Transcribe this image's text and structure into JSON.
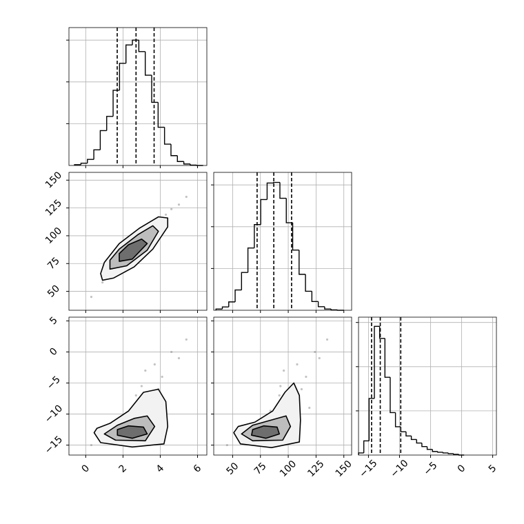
{
  "chart_data": {
    "type": "corner",
    "grid": true,
    "grid_color": "#b0b0b0",
    "line_color": "#000000",
    "point_color": "#888888",
    "level_colors": [
      "#f2f2f2",
      "#bdbdbd",
      "#6e6e6e"
    ],
    "params": [
      {
        "lim": [
          -0.9,
          6.5
        ],
        "ticks": [
          0,
          2,
          4,
          6
        ],
        "bins": [
          -0.6,
          -0.255,
          0.09,
          0.435,
          0.78,
          1.125,
          1.47,
          1.815,
          2.16,
          2.505,
          2.85,
          3.195,
          3.54,
          3.885,
          4.23,
          4.575,
          4.92,
          5.265,
          5.61,
          5.955,
          6.3
        ],
        "counts": [
          4,
          11,
          29,
          75,
          167,
          235,
          360,
          489,
          577,
          600,
          545,
          432,
          302,
          183,
          102,
          47,
          19,
          7,
          2,
          0
        ],
        "hist_ylim": [
          0,
          660
        ],
        "hist_yticks": [
          200,
          400,
          600
        ],
        "quantiles": [
          1.69,
          2.7,
          3.67
        ]
      },
      {
        "lim": [
          33,
          157
        ],
        "ticks": [
          50,
          75,
          100,
          125,
          150
        ],
        "bins": [
          35,
          40.75,
          46.5,
          52.25,
          58,
          63.75,
          69.5,
          75.25,
          81,
          86.75,
          92.5,
          98.25,
          104,
          109.75,
          115.5,
          121.25,
          127,
          132.75,
          138.5,
          144.25,
          150
        ],
        "counts": [
          6,
          16,
          40,
          97,
          181,
          298,
          410,
          530,
          609,
          612,
          536,
          419,
          288,
          172,
          91,
          42,
          17,
          6,
          2,
          0
        ],
        "hist_ylim": [
          0,
          660
        ],
        "hist_yticks": [
          200,
          400,
          600
        ],
        "quantiles": [
          72,
          87,
          103
        ]
      },
      {
        "lim": [
          -16.6,
          5.6
        ],
        "ticks": [
          {
            "value": -15,
            "label": "−15"
          },
          {
            "value": -10,
            "label": "−10"
          },
          {
            "value": -5,
            "label": "−5"
          },
          0,
          5
        ],
        "bins": [
          -16.6,
          -15.75,
          -14.9,
          -14.05,
          -13.2,
          -12.35,
          -11.5,
          -10.65,
          -9.8,
          -8.95,
          -8.1,
          -7.25,
          -6.4,
          -5.55,
          -4.7,
          -3.85,
          -3.0,
          -2.15,
          -1.3,
          -0.45,
          0.4
        ],
        "counts": [
          12,
          80,
          320,
          728,
          660,
          440,
          240,
          160,
          132,
          108,
          88,
          68,
          48,
          32,
          20,
          16,
          12,
          8,
          4,
          0
        ],
        "hist_ylim": [
          0,
          780
        ],
        "hist_yticks": [
          250,
          500,
          750
        ],
        "quantiles": [
          -14.5,
          -13.1,
          -9.8
        ]
      }
    ],
    "samples": {
      "x": [
        0.3,
        0.9,
        1.2,
        1.5,
        1.7,
        1.9,
        2.0,
        2.2,
        2.3,
        2.4,
        2.5,
        2.6,
        2.7,
        2.8,
        2.9,
        3.0,
        3.1,
        3.2,
        3.4,
        3.5,
        3.7,
        3.9,
        4.1,
        4.3,
        4.6,
        5.0,
        5.4,
        1.1,
        2.1,
        3.3
      ],
      "y1": [
        45,
        58,
        66,
        70,
        74,
        79,
        80,
        83,
        88,
        84,
        90,
        86,
        92,
        89,
        95,
        93,
        99,
        96,
        101,
        105,
        108,
        112,
        116,
        119,
        124,
        128,
        135,
        62,
        76,
        104
      ],
      "y2": [
        -15,
        -14.5,
        -13.8,
        -14,
        -12.9,
        -13.4,
        -11,
        -12.8,
        -13.2,
        -9.5,
        -13.5,
        -12.4,
        -7,
        -11.8,
        -13,
        -5.5,
        -10,
        -3,
        -12,
        -8,
        -2,
        -6,
        -4,
        -9,
        0,
        -1,
        2,
        -14,
        -13.6,
        -11.2
      ]
    },
    "contours": [
      {
        "panel": [
          1,
          0
        ],
        "levels": [
          {
            "x": [
              0.9,
              1.5,
              2.6,
              3.6,
              4.4,
              4.4,
              3.9,
              2.9,
              1.8,
              1.0,
              0.8
            ],
            "y": [
              60,
              62,
              72,
              88,
              108,
              116,
              117,
              107,
              93,
              76,
              66
            ]
          },
          {
            "x": [
              1.3,
              2.2,
              3.3,
              3.9,
              3.6,
              2.8,
              1.8,
              1.3
            ],
            "y": [
              70,
              73,
              87,
              104,
              109,
              101,
              88,
              78
            ]
          },
          {
            "x": [
              1.8,
              2.5,
              3.3,
              3.0,
              2.3,
              1.8
            ],
            "y": [
              77,
              79,
              93,
              97,
              92,
              84
            ]
          }
        ]
      },
      {
        "panel": [
          2,
          0
        ],
        "levels": [
          {
            "x": [
              0.45,
              0.8,
              2.5,
              4.2,
              4.4,
              4.3,
              3.9,
              3.1,
              2.3,
              1.3,
              0.6
            ],
            "y": [
              -13,
              -14.6,
              -15.3,
              -14.8,
              -12,
              -8,
              -6,
              -6.5,
              -9.5,
              -11.5,
              -12.3
            ]
          },
          {
            "x": [
              1.0,
              1.6,
              3.2,
              3.7,
              3.3,
              2.6,
              1.7
            ],
            "y": [
              -13.2,
              -14.2,
              -14.3,
              -12,
              -10.3,
              -10.7,
              -11.8
            ]
          },
          {
            "x": [
              1.7,
              2.5,
              3.3,
              3.1,
              2.3,
              1.7
            ],
            "y": [
              -13.4,
              -13.9,
              -13.2,
              -12.1,
              -11.9,
              -12.5
            ]
          }
        ]
      },
      {
        "panel": [
          2,
          1
        ],
        "levels": [
          {
            "x": [
              51,
              57,
              85,
              110,
              111,
              110,
              105,
              97,
              86,
              70,
              55
            ],
            "y": [
              -13,
              -14.8,
              -15.4,
              -14.5,
              -11,
              -7,
              -5,
              -6.5,
              -9.5,
              -11.3,
              -12
            ]
          },
          {
            "x": [
              58,
              68,
              95,
              102,
              98,
              88,
              68
            ],
            "y": [
              -13.2,
              -14.3,
              -14.2,
              -12,
              -10.3,
              -10.8,
              -11.8
            ]
          },
          {
            "x": [
              67,
              80,
              92,
              90,
              78,
              68
            ],
            "y": [
              -13.4,
              -13.9,
              -13.2,
              -12.1,
              -11.9,
              -12.5
            ]
          }
        ]
      }
    ]
  }
}
